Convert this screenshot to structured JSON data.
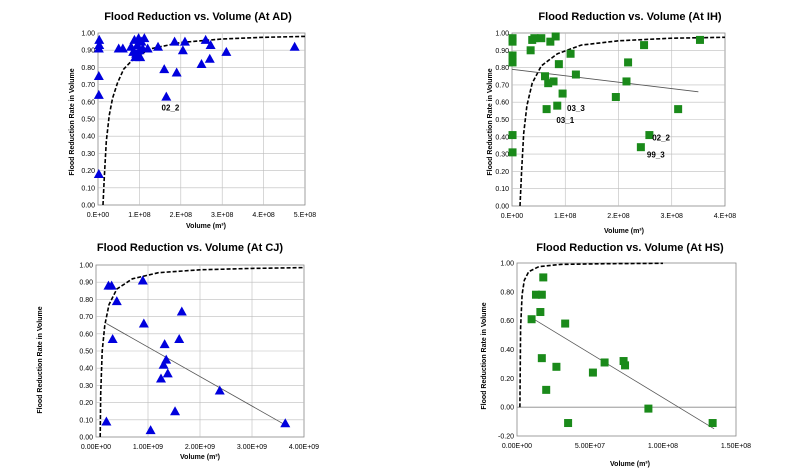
{
  "chart_data": [
    {
      "type": "scatter",
      "title": "Flood Reduction vs. Volume (At AD)",
      "xlabel": "Volume (m³)",
      "ylabel": "Flood Reduction Rate in Volume",
      "xlim": [
        0,
        500000000
      ],
      "ylim": [
        0,
        1.0
      ],
      "x_ticks": [
        "0.E+00",
        "1.E+08",
        "2.E+08",
        "3.E+08",
        "4.E+08",
        "5.E+08"
      ],
      "y_ticks": [
        "0.00",
        "0.10",
        "0.20",
        "0.30",
        "0.40",
        "0.50",
        "0.60",
        "0.70",
        "0.80",
        "0.90",
        "1.00"
      ],
      "grid": true,
      "marker": "triangle",
      "marker_color": "#0000dd",
      "points": [
        [
          2000000,
          0.18
        ],
        [
          2000000,
          0.64
        ],
        [
          2000000,
          0.75
        ],
        [
          2000000,
          0.91
        ],
        [
          3000000,
          0.93
        ],
        [
          3000000,
          0.96
        ],
        [
          50000000,
          0.91
        ],
        [
          60000000,
          0.91
        ],
        [
          80000000,
          0.92
        ],
        [
          85000000,
          0.89
        ],
        [
          88000000,
          0.96
        ],
        [
          90000000,
          0.86
        ],
        [
          92000000,
          0.88
        ],
        [
          95000000,
          0.93
        ],
        [
          98000000,
          0.97
        ],
        [
          100000000,
          0.9
        ],
        [
          102000000,
          0.86
        ],
        [
          105000000,
          0.95
        ],
        [
          108000000,
          0.91
        ],
        [
          112000000,
          0.97
        ],
        [
          120000000,
          0.91
        ],
        [
          145000000,
          0.92
        ],
        [
          160000000,
          0.79
        ],
        [
          165000000,
          0.63
        ],
        [
          185000000,
          0.95
        ],
        [
          190000000,
          0.77
        ],
        [
          205000000,
          0.9
        ],
        [
          210000000,
          0.95
        ],
        [
          250000000,
          0.82
        ],
        [
          260000000,
          0.96
        ],
        [
          270000000,
          0.85
        ],
        [
          272000000,
          0.93
        ],
        [
          310000000,
          0.89
        ],
        [
          475000000,
          0.92
        ]
      ],
      "curve": [
        [
          12000000,
          0.0
        ],
        [
          15000000,
          0.15
        ],
        [
          20000000,
          0.37
        ],
        [
          27000000,
          0.52
        ],
        [
          35000000,
          0.62
        ],
        [
          47000000,
          0.71
        ],
        [
          62000000,
          0.79
        ],
        [
          90000000,
          0.86
        ],
        [
          130000000,
          0.91
        ],
        [
          200000000,
          0.945
        ],
        [
          300000000,
          0.965
        ],
        [
          400000000,
          0.975
        ],
        [
          500000000,
          0.98
        ]
      ],
      "annotations": [
        {
          "text": "02_2",
          "x": 175000000,
          "y": 0.55
        }
      ]
    },
    {
      "type": "scatter",
      "title": "Flood Reduction vs. Volume (At IH)",
      "xlabel": "Volume (m³)",
      "ylabel": "Flood Reduction Rate in Volume",
      "xlim": [
        0,
        400000000
      ],
      "ylim": [
        0,
        1.0
      ],
      "x_ticks": [
        "0.E+00",
        "1.E+08",
        "2.E+08",
        "3.E+08",
        "4.E+08"
      ],
      "y_ticks": [
        "0.00",
        "0.10",
        "0.20",
        "0.30",
        "0.40",
        "0.50",
        "0.60",
        "0.70",
        "0.80",
        "0.90",
        "1.00"
      ],
      "grid": true,
      "marker": "square",
      "marker_color": "#1a8a1a",
      "points": [
        [
          1000000,
          0.31
        ],
        [
          1000000,
          0.41
        ],
        [
          1000000,
          0.83
        ],
        [
          1000000,
          0.87
        ],
        [
          1000000,
          0.95
        ],
        [
          1000000,
          0.97
        ],
        [
          35000000,
          0.9
        ],
        [
          38000000,
          0.96
        ],
        [
          42000000,
          0.97
        ],
        [
          55000000,
          0.97
        ],
        [
          62000000,
          0.75
        ],
        [
          65000000,
          0.56
        ],
        [
          68000000,
          0.71
        ],
        [
          72000000,
          0.95
        ],
        [
          78000000,
          0.72
        ],
        [
          82000000,
          0.98
        ],
        [
          85000000,
          0.58
        ],
        [
          88000000,
          0.82
        ],
        [
          95000000,
          0.65
        ],
        [
          110000000,
          0.88
        ],
        [
          120000000,
          0.76
        ],
        [
          195000000,
          0.63
        ],
        [
          215000000,
          0.72
        ],
        [
          218000000,
          0.83
        ],
        [
          242000000,
          0.34
        ],
        [
          248000000,
          0.93
        ],
        [
          258000000,
          0.41
        ],
        [
          312000000,
          0.56
        ],
        [
          353000000,
          0.96
        ]
      ],
      "curve": [
        [
          15000000,
          0.0
        ],
        [
          18000000,
          0.2
        ],
        [
          22000000,
          0.42
        ],
        [
          28000000,
          0.58
        ],
        [
          38000000,
          0.71
        ],
        [
          55000000,
          0.81
        ],
        [
          85000000,
          0.88
        ],
        [
          130000000,
          0.93
        ],
        [
          200000000,
          0.955
        ],
        [
          300000000,
          0.97
        ],
        [
          400000000,
          0.975
        ]
      ],
      "trend": [
        [
          0,
          0.79
        ],
        [
          350000000,
          0.66
        ]
      ],
      "annotations": [
        {
          "text": "03_3",
          "x": 120000000,
          "y": 0.55
        },
        {
          "text": "03_1",
          "x": 100000000,
          "y": 0.48
        },
        {
          "text": "02_2",
          "x": 280000000,
          "y": 0.38
        },
        {
          "text": "99_3",
          "x": 270000000,
          "y": 0.28
        }
      ]
    },
    {
      "type": "scatter",
      "title": "Flood Reduction vs. Volume (At CJ)",
      "xlabel": "Volume (m³)",
      "ylabel": "Flood Reduction Rate in Volume",
      "xlim": [
        0,
        4000000000
      ],
      "ylim": [
        0,
        1.0
      ],
      "x_ticks": [
        "0.00E+00",
        "1.00E+09",
        "2.00E+09",
        "3.00E+09",
        "4.00E+09"
      ],
      "y_ticks": [
        "0.00",
        "0.10",
        "0.20",
        "0.30",
        "0.40",
        "0.50",
        "0.60",
        "0.70",
        "0.80",
        "0.90",
        "1.00"
      ],
      "grid": true,
      "marker": "triangle",
      "marker_color": "#0000dd",
      "points": [
        [
          200000000,
          0.09
        ],
        [
          240000000,
          0.88
        ],
        [
          300000000,
          0.88
        ],
        [
          320000000,
          0.57
        ],
        [
          400000000,
          0.79
        ],
        [
          900000000,
          0.91
        ],
        [
          920000000,
          0.66
        ],
        [
          1050000000,
          0.04
        ],
        [
          1250000000,
          0.34
        ],
        [
          1300000000,
          0.42
        ],
        [
          1320000000,
          0.54
        ],
        [
          1350000000,
          0.45
        ],
        [
          1380000000,
          0.37
        ],
        [
          1520000000,
          0.15
        ],
        [
          1600000000,
          0.57
        ],
        [
          1650000000,
          0.73
        ],
        [
          2380000000,
          0.27
        ],
        [
          3640000000,
          0.08
        ]
      ],
      "curve": [
        [
          80000000,
          0.0
        ],
        [
          90000000,
          0.25
        ],
        [
          120000000,
          0.5
        ],
        [
          170000000,
          0.65
        ],
        [
          250000000,
          0.77
        ],
        [
          400000000,
          0.86
        ],
        [
          700000000,
          0.92
        ],
        [
          1200000000,
          0.955
        ],
        [
          2000000000,
          0.972
        ],
        [
          3000000000,
          0.98
        ],
        [
          4000000000,
          0.985
        ]
      ],
      "trend": [
        [
          200000000,
          0.66
        ],
        [
          3700000000,
          0.06
        ]
      ]
    },
    {
      "type": "scatter",
      "title": "Flood Reduction vs. Volume (At HS)",
      "xlabel": "Volume (m³)",
      "ylabel": "Flood Reduction Rate in Volume",
      "xlim": [
        0,
        150000000
      ],
      "ylim": [
        -0.2,
        1.0
      ],
      "x_ticks": [
        "0.00E+00",
        "5.00E+07",
        "1.00E+08",
        "1.50E+08"
      ],
      "y_ticks": [
        "-0.20",
        "0.00",
        "0.20",
        "0.40",
        "0.60",
        "0.80",
        "1.00"
      ],
      "grid": false,
      "marker": "square",
      "marker_color": "#1a8a1a",
      "points": [
        [
          10000000,
          0.61
        ],
        [
          13000000,
          0.78
        ],
        [
          16000000,
          0.66
        ],
        [
          17000000,
          0.34
        ],
        [
          17000000,
          0.78
        ],
        [
          18000000,
          0.9
        ],
        [
          20000000,
          0.12
        ],
        [
          27000000,
          0.28
        ],
        [
          33000000,
          0.58
        ],
        [
          35000000,
          -0.11
        ],
        [
          52000000,
          0.24
        ],
        [
          60000000,
          0.31
        ],
        [
          73000000,
          0.32
        ],
        [
          74000000,
          0.29
        ],
        [
          90000000,
          -0.01
        ],
        [
          134000000,
          -0.11
        ]
      ],
      "curve": [
        [
          2000000,
          0.0
        ],
        [
          2500000,
          0.55
        ],
        [
          3500000,
          0.78
        ],
        [
          5000000,
          0.88
        ],
        [
          8000000,
          0.94
        ],
        [
          15000000,
          0.975
        ],
        [
          30000000,
          0.99
        ],
        [
          60000000,
          0.995
        ],
        [
          100000000,
          0.998
        ]
      ],
      "trend": [
        [
          10000000,
          0.62
        ],
        [
          135000000,
          -0.15
        ]
      ]
    }
  ]
}
